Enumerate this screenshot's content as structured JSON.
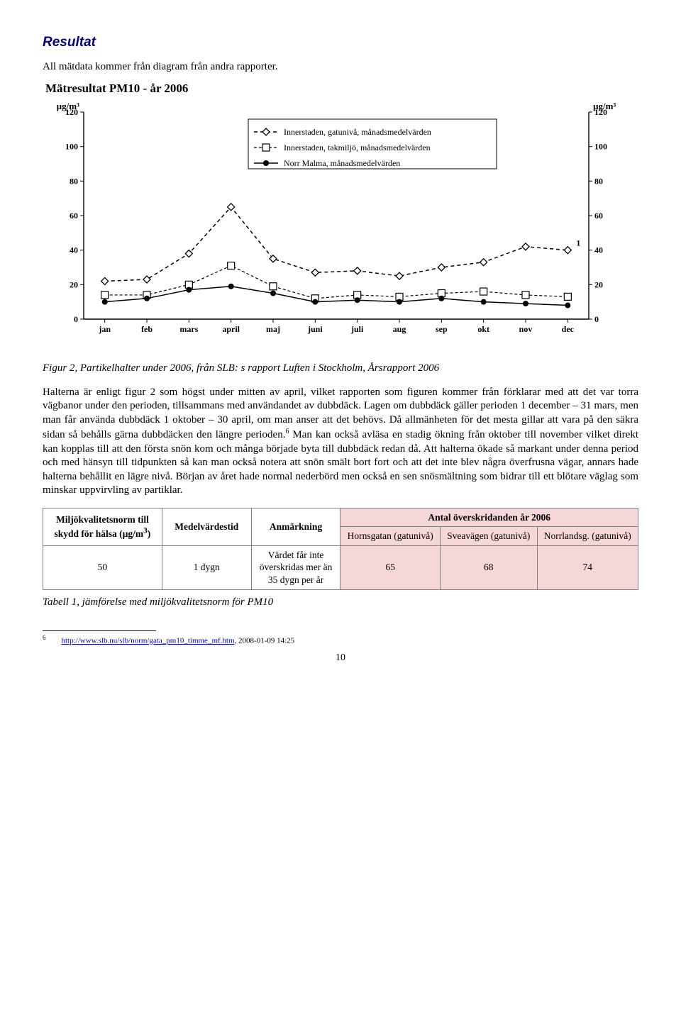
{
  "section_title": "Resultat",
  "intro_text": "All mätdata kommer från diagram från andra rapporter.",
  "chart": {
    "title": "Mätresultat PM10 - år 2006",
    "y_axis_label_left": "µg/m³",
    "y_axis_label_right": "µg/m³",
    "ylim": [
      0,
      120
    ],
    "ytick_step": 20,
    "categories": [
      "jan",
      "feb",
      "mars",
      "april",
      "maj",
      "juni",
      "juli",
      "aug",
      "sep",
      "okt",
      "nov",
      "dec"
    ],
    "series": [
      {
        "name": "Innerstaden, gatunivå, månadsmedelvärden",
        "marker": "diamond-open",
        "dash": "5,4",
        "values": [
          22,
          23,
          38,
          65,
          35,
          27,
          28,
          25,
          30,
          33,
          42,
          40
        ],
        "color": "#000000",
        "stroke_width": 1.5,
        "end_label": "1"
      },
      {
        "name": "Innerstaden, takmiljö, månadsmedelvärden",
        "marker": "square-open",
        "dash": "4,3",
        "values": [
          14,
          14,
          20,
          31,
          19,
          12,
          14,
          13,
          15,
          16,
          14,
          13
        ],
        "color": "#000000",
        "stroke_width": 1.2
      },
      {
        "name": "Norr Malma, månadsmedelvärden",
        "marker": "circle-solid",
        "dash": "none",
        "values": [
          10,
          12,
          17,
          19,
          15,
          10,
          11,
          10,
          12,
          10,
          9,
          8
        ],
        "color": "#000000",
        "stroke_width": 1.5
      }
    ],
    "background_color": "#ffffff",
    "axis_color": "#000000",
    "tick_len": 5,
    "marker_size": 5
  },
  "figure_caption": "Figur 2, Partikelhalter under 2006, från SLB: s rapport Luften i Stockholm, Årsrapport 2006",
  "body_paragraph_parts": {
    "before_fn": "Halterna är enligt figur 2 som högst under mitten av april, vilket rapporten som figuren kommer från förklarar med att det var torra vägbanor under den perioden, tillsammans med användandet av dubbdäck. Lagen om dubbdäck gäller perioden 1 december – 31 mars, men man får använda dubbdäck 1 oktober – 30 april, om man anser att det behövs. Då allmänheten för det mesta gillar att vara på den säkra sidan så behålls gärna dubbdäcken den längre perioden.",
    "fn_marker": "6",
    "after_fn": " Man kan också avläsa en stadig ökning från oktober till november vilket direkt kan kopplas till att den första snön kom och många började byta till dubbdäck redan då. Att halterna ökade så markant under denna period och med hänsyn till tidpunkten så kan man också notera att snön smält bort fort och att det inte blev några överfrusna vägar, annars hade halterna behållit en lägre nivå. Början av året hade normal nederbörd men också en sen snösmältning som bidrar till ett blötare väglag som minskar uppvirvling av partiklar."
  },
  "table": {
    "header_row1": {
      "col1": "Miljökvalitetsnorm till skydd för hälsa (µg/m³)",
      "col2": "Medelvärdestid",
      "col3": "Anmärkning",
      "col4": "Antal överskridanden år 2006"
    },
    "header_row2": {
      "c1": "Hornsgatan (gatunivå)",
      "c2": "Sveavägen (gatunivå)",
      "c3": "Norrlandsg. (gatunivå)"
    },
    "data_row": {
      "norm": "50",
      "period": "1 dygn",
      "note": "Värdet får inte överskridas mer än 35 dygn per år",
      "v1": "65",
      "v2": "68",
      "v3": "74"
    }
  },
  "table_caption": "Tabell 1, jämförelse med miljökvalitetsnorm för PM10",
  "footnote": {
    "marker": "6",
    "url_text": "http://www.slb.nu/slb/norm/gata_pm10_timme_mf.htm",
    "suffix": ", 2008-01-09 14:25"
  },
  "page_number": "10"
}
